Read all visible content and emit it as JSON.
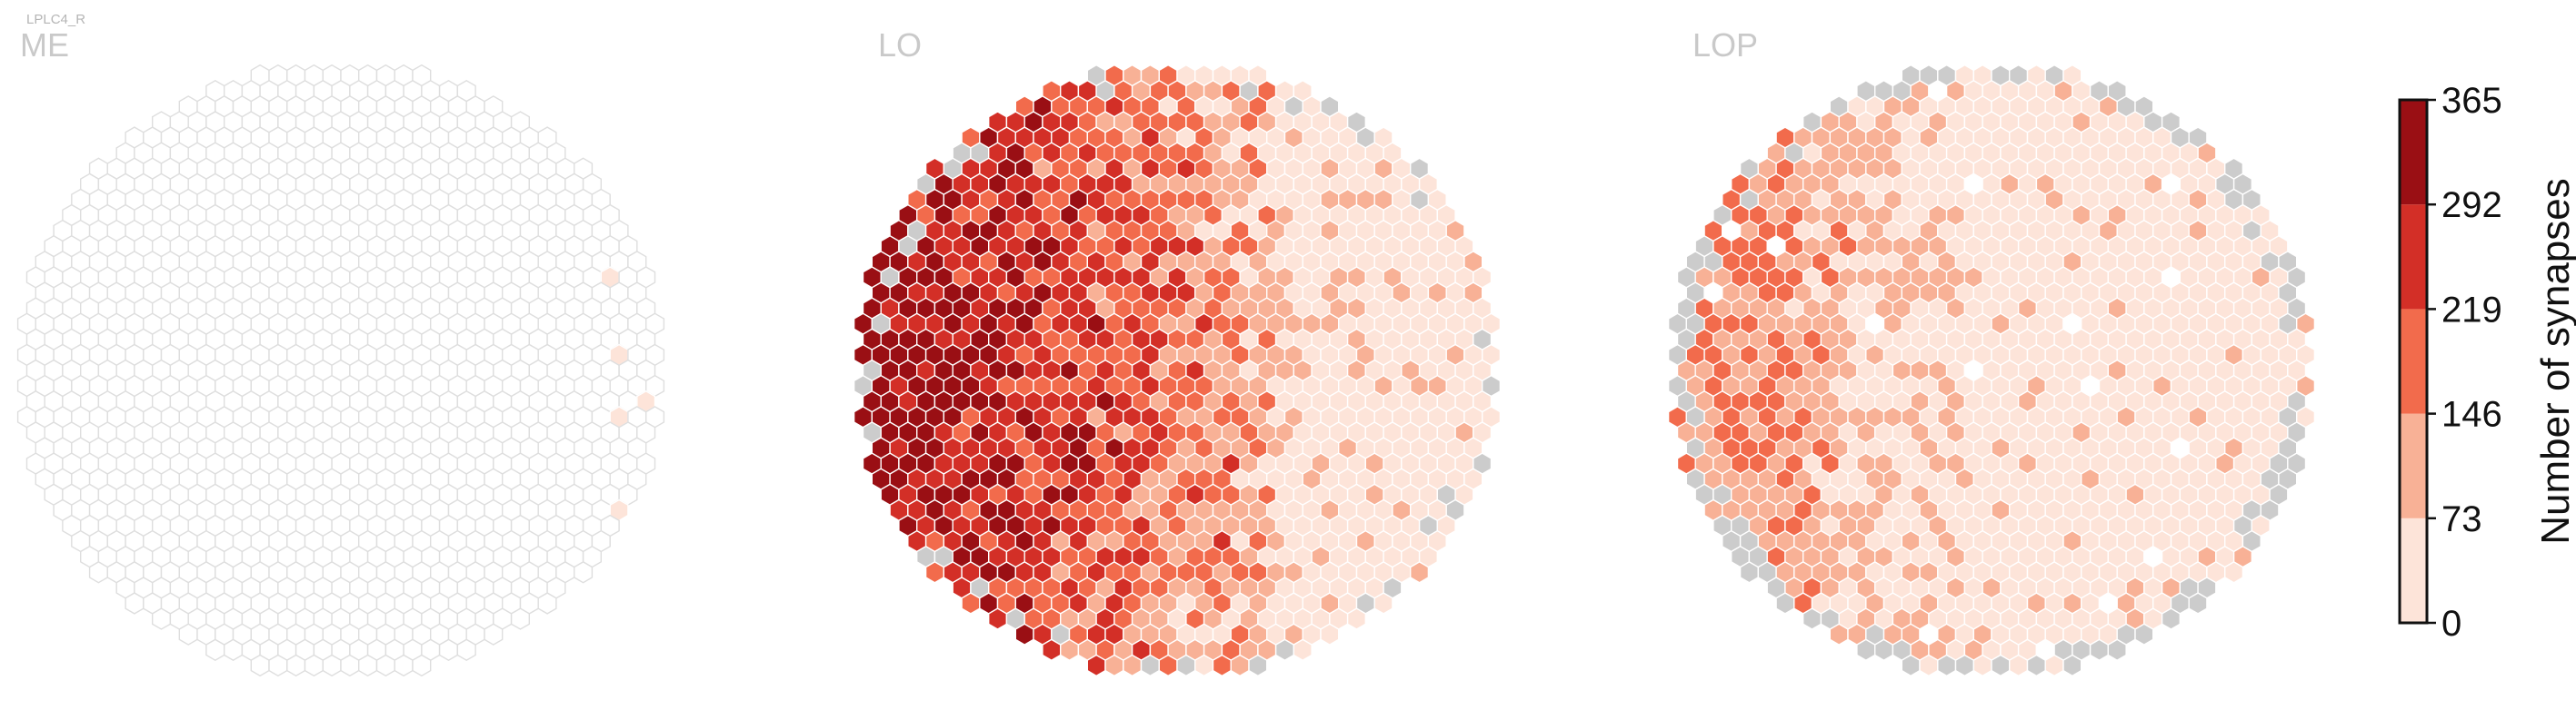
{
  "cell_type_label": "LPLC4_R",
  "panels": [
    {
      "key": "me",
      "title": "ME"
    },
    {
      "key": "lo",
      "title": "LO"
    },
    {
      "key": "lop",
      "title": "LOP"
    }
  ],
  "colorbar": {
    "label": "Number of synapses",
    "ticks": [
      "365",
      "292",
      "219",
      "146",
      "73",
      "0"
    ],
    "bins": [
      0,
      73,
      146,
      219,
      292,
      365
    ],
    "colors": [
      "#fde4d9",
      "#f8b196",
      "#f26b4c",
      "#d32f27",
      "#9a0f14"
    ]
  },
  "chart_data": {
    "type": "heatmap",
    "title": "",
    "colorbar_label": "Number of synapses",
    "colorbar_range": [
      0,
      365
    ],
    "colorbar_ticks": [
      0,
      73,
      146,
      219,
      292,
      365
    ],
    "missing_color": "#cccccc",
    "panels": [
      {
        "name": "ME",
        "description_level": "nearly all columns 0 synapses; a few columns on the right edge in 1-73 range"
      },
      {
        "name": "LO",
        "description_level": "high values (219-365) concentrated left-center, decreasing to 0-73 toward the right; some columns missing along top and bottom edges"
      },
      {
        "name": "LOP",
        "description_level": "moderate values (73-219) on the left, mostly 0-73 elsewhere; missing columns along the perimeter"
      }
    ]
  }
}
